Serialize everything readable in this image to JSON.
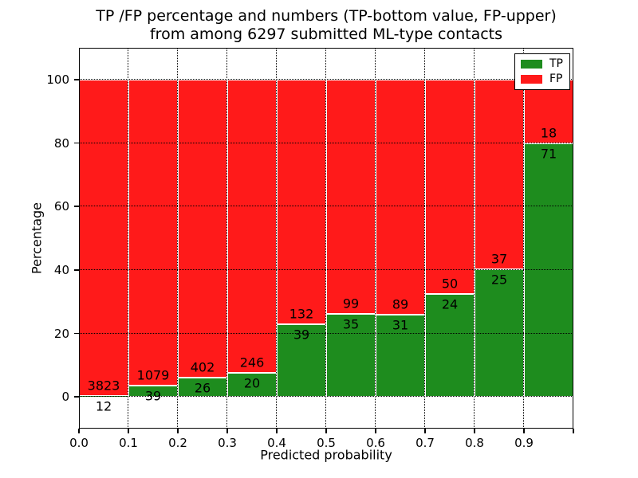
{
  "title": {
    "line1": "TP /FP percentage and numbers (TP-bottom value, FP-upper)",
    "line2": "from among 6297 submitted ML-type contacts"
  },
  "legend": {
    "items": [
      {
        "label": "TP",
        "color": "#1e8c1e"
      },
      {
        "label": "FP",
        "color": "#ff1a1a"
      }
    ]
  },
  "chart_data": {
    "type": "bar",
    "stacked": true,
    "normalized_to_percent": true,
    "title": "TP /FP percentage and numbers (TP-bottom value, FP-upper) from among 6297 submitted ML-type contacts",
    "total_contacts": 6297,
    "xlabel": "Predicted probability",
    "ylabel": "Percentage",
    "xlim": [
      0.0,
      1.0
    ],
    "ylim": [
      -10,
      110
    ],
    "grid": true,
    "legend_position": "upper right",
    "bin_edges": [
      0.0,
      0.1,
      0.2,
      0.3,
      0.4,
      0.5,
      0.6,
      0.7,
      0.8,
      0.9,
      1.0
    ],
    "x_ticks": [
      "0.0",
      "0.1",
      "0.2",
      "0.3",
      "0.4",
      "0.5",
      "0.6",
      "0.7",
      "0.8",
      "0.9"
    ],
    "y_ticks": [
      0,
      20,
      40,
      60,
      80,
      100
    ],
    "series": [
      {
        "name": "TP",
        "color": "#1e8c1e",
        "counts": [
          12,
          39,
          26,
          20,
          39,
          35,
          31,
          24,
          25,
          71
        ]
      },
      {
        "name": "FP",
        "color": "#ff1a1a",
        "counts": [
          3823,
          1079,
          402,
          246,
          132,
          99,
          89,
          50,
          37,
          18
        ]
      }
    ],
    "tp_percent": [
      0.31,
      3.49,
      6.07,
      7.52,
      22.81,
      26.12,
      25.83,
      32.43,
      40.32,
      79.78
    ]
  }
}
